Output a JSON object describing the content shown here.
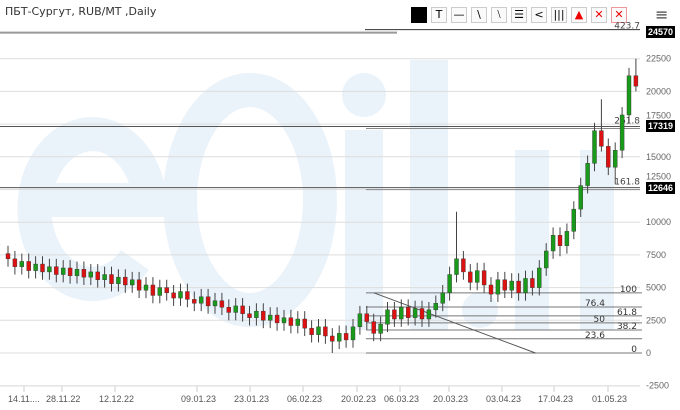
{
  "header": {
    "title": "ПБТ-Сургут, RUB/MT ,Daily"
  },
  "toolbar": [
    {
      "icon": "color-square-icon",
      "glyph": ""
    },
    {
      "icon": "text-tool-icon",
      "glyph": "T"
    },
    {
      "icon": "horizontal-line-icon",
      "glyph": "—"
    },
    {
      "icon": "trend-line-icon",
      "glyph": "\\"
    },
    {
      "icon": "parallel-lines-icon",
      "glyph": "⧵"
    },
    {
      "icon": "fibonacci-icon",
      "glyph": "☰"
    },
    {
      "icon": "fan-icon",
      "glyph": "<"
    },
    {
      "icon": "vertical-lines-icon",
      "glyph": "|||"
    },
    {
      "icon": "layers-icon",
      "glyph": "▲"
    },
    {
      "icon": "delete-icon",
      "glyph": "✕"
    },
    {
      "icon": "delete-all-icon",
      "glyph": "✕"
    }
  ],
  "menu_icon": "hamburger-menu-icon",
  "watermark": "eOil.ru",
  "colors": {
    "up": "#1a9a1a",
    "down": "#dd1111",
    "grid": "#dddddd",
    "watermark": "#eaf2fa"
  },
  "chart_data": {
    "type": "candlestick",
    "title": "ПБТ-Сургут, RUB/MT ,Daily",
    "ylim": [
      -2500,
      24570
    ],
    "y_ticks": [
      -2500,
      0,
      2500,
      5000,
      7500,
      10000,
      12500,
      15000,
      17500,
      20000,
      22500
    ],
    "grid": true,
    "x_ticks": [
      "14.11....",
      "28.11.22",
      "12.12.22",
      "09.01.23",
      "23.01.23",
      "06.02.23",
      "20.02.23",
      "06.03.23",
      "20.03.23",
      "03.04.23",
      "17.04.23",
      "01.05.23"
    ],
    "ohlc": [
      [
        7600,
        8200,
        6600,
        7200
      ],
      [
        7200,
        7800,
        6000,
        6600
      ],
      [
        6600,
        7600,
        6000,
        7000
      ],
      [
        7000,
        7600,
        5700,
        6300
      ],
      [
        6300,
        7400,
        5700,
        6800
      ],
      [
        6800,
        7400,
        5600,
        6200
      ],
      [
        6200,
        7200,
        5600,
        6600
      ],
      [
        6600,
        7200,
        5400,
        6000
      ],
      [
        6000,
        7100,
        5400,
        6500
      ],
      [
        6500,
        7100,
        5300,
        5900
      ],
      [
        5900,
        7000,
        5300,
        6400
      ],
      [
        6400,
        7000,
        5200,
        5800
      ],
      [
        5800,
        6800,
        5200,
        6200
      ],
      [
        6200,
        6800,
        5000,
        5600
      ],
      [
        5600,
        6600,
        5000,
        6000
      ],
      [
        6000,
        6600,
        4700,
        5300
      ],
      [
        5300,
        6400,
        4700,
        5800
      ],
      [
        5800,
        6400,
        4600,
        5200
      ],
      [
        5200,
        6200,
        4600,
        5600
      ],
      [
        5600,
        6200,
        4200,
        4800
      ],
      [
        4800,
        5800,
        4200,
        5200
      ],
      [
        5200,
        5800,
        3800,
        4400
      ],
      [
        4400,
        5600,
        3800,
        5000
      ],
      [
        5000,
        5600,
        4000,
        4600
      ],
      [
        4600,
        5200,
        3600,
        4200
      ],
      [
        4200,
        5300,
        3600,
        4700
      ],
      [
        4700,
        5300,
        3500,
        4100
      ],
      [
        4100,
        4700,
        3200,
        3800
      ],
      [
        3800,
        4900,
        3200,
        4300
      ],
      [
        4300,
        4900,
        3000,
        3600
      ],
      [
        3600,
        4600,
        3000,
        4000
      ],
      [
        4000,
        4600,
        2900,
        3500
      ],
      [
        3500,
        4100,
        2500,
        3100
      ],
      [
        3100,
        4200,
        2500,
        3600
      ],
      [
        3600,
        4200,
        2400,
        3000
      ],
      [
        3000,
        3600,
        2100,
        2700
      ],
      [
        2700,
        3800,
        2100,
        3200
      ],
      [
        3200,
        3800,
        1900,
        2500
      ],
      [
        2500,
        3500,
        1900,
        2900
      ],
      [
        2900,
        3500,
        1700,
        2300
      ],
      [
        2300,
        3300,
        1700,
        2700
      ],
      [
        2700,
        3300,
        1500,
        2100
      ],
      [
        2100,
        3200,
        1500,
        2600
      ],
      [
        2600,
        3200,
        1300,
        1900
      ],
      [
        1900,
        2500,
        800,
        1400
      ],
      [
        1400,
        2600,
        800,
        2000
      ],
      [
        2000,
        2600,
        700,
        1300
      ],
      [
        1300,
        1900,
        0,
        900
      ],
      [
        900,
        2100,
        300,
        1500
      ],
      [
        1500,
        2100,
        400,
        1000
      ],
      [
        1000,
        2600,
        400,
        2000
      ],
      [
        2000,
        3600,
        1400,
        3000
      ],
      [
        3000,
        3600,
        1800,
        2400
      ],
      [
        2400,
        3000,
        900,
        1500
      ],
      [
        1500,
        2800,
        900,
        2200
      ],
      [
        2200,
        3900,
        1600,
        3300
      ],
      [
        3300,
        3900,
        2000,
        2600
      ],
      [
        2600,
        4100,
        2000,
        3500
      ],
      [
        3500,
        4100,
        2100,
        2700
      ],
      [
        2700,
        4000,
        2100,
        3400
      ],
      [
        3400,
        4000,
        2000,
        2600
      ],
      [
        2600,
        3900,
        2000,
        3300
      ],
      [
        3300,
        4400,
        2700,
        3800
      ],
      [
        3800,
        5200,
        3200,
        4600
      ],
      [
        4600,
        6600,
        4000,
        6000
      ],
      [
        6000,
        10800,
        5400,
        7200
      ],
      [
        7200,
        7800,
        5600,
        6200
      ],
      [
        6200,
        6800,
        4800,
        5400
      ],
      [
        5400,
        6900,
        4800,
        6300
      ],
      [
        6300,
        6900,
        4600,
        5200
      ],
      [
        5200,
        5800,
        3900,
        4500
      ],
      [
        4500,
        6200,
        3900,
        5600
      ],
      [
        5600,
        6200,
        4200,
        4800
      ],
      [
        4800,
        6100,
        4200,
        5500
      ],
      [
        5500,
        6100,
        4000,
        4600
      ],
      [
        4600,
        6300,
        4000,
        5700
      ],
      [
        5700,
        6300,
        4400,
        5000
      ],
      [
        5000,
        7100,
        4400,
        6500
      ],
      [
        6500,
        8400,
        5900,
        7800
      ],
      [
        7800,
        9600,
        7200,
        9000
      ],
      [
        9000,
        9600,
        7400,
        8200
      ],
      [
        8200,
        9900,
        7600,
        9300
      ],
      [
        9300,
        11600,
        8700,
        11000
      ],
      [
        11000,
        13400,
        10400,
        12800
      ],
      [
        12800,
        15100,
        12200,
        14500
      ],
      [
        14500,
        17600,
        13900,
        17000
      ],
      [
        17000,
        19400,
        15400,
        15800
      ],
      [
        15800,
        16400,
        13600,
        14200
      ],
      [
        14200,
        16100,
        12900,
        15500
      ],
      [
        15500,
        18800,
        14900,
        18200
      ],
      [
        18200,
        21800,
        17600,
        21200
      ],
      [
        21200,
        22500,
        20000,
        20400
      ]
    ],
    "price_lines": [
      {
        "price": 24570,
        "label": "24570",
        "fib_label": "423.7"
      },
      {
        "price": 17319,
        "label": "17319",
        "fib_label": "261.8"
      },
      {
        "price": 12646,
        "label": "12646",
        "fib_label": "161.8"
      }
    ],
    "fib_retracement": {
      "high": 4600,
      "low": 0,
      "levels": [
        "100",
        "76.4",
        "61.8",
        "50",
        "38.2",
        "23.6",
        "0"
      ]
    },
    "trend_line": {
      "from": {
        "candle": 52,
        "price": 4600
      },
      "to": {
        "candle": 75,
        "price": 0
      }
    }
  }
}
